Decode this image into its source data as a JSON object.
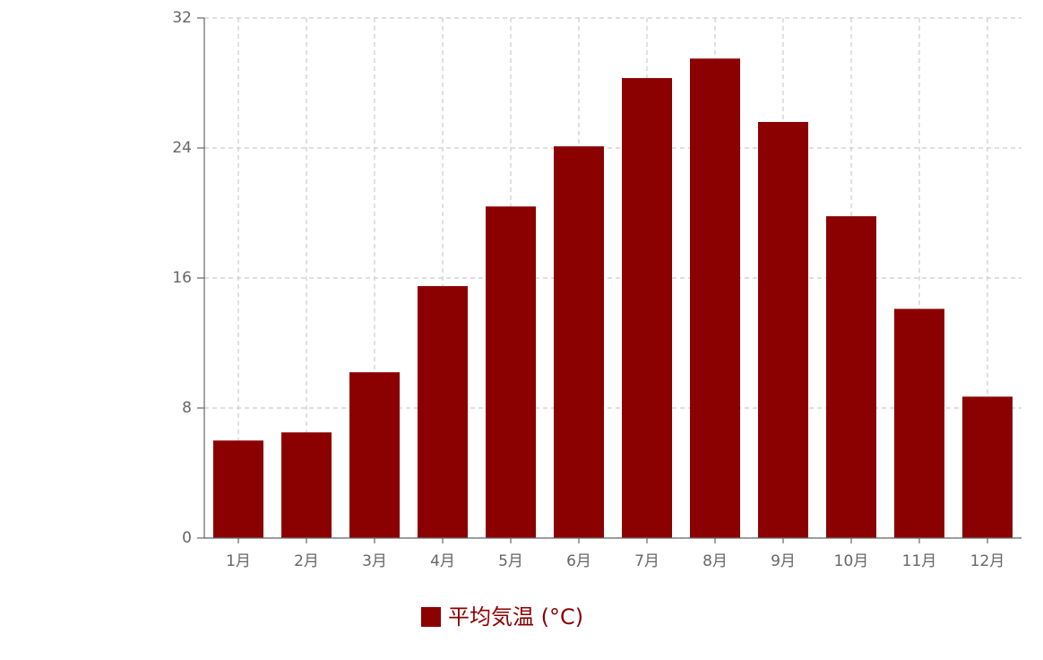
{
  "chart_data": {
    "type": "bar",
    "categories": [
      "1月",
      "2月",
      "3月",
      "4月",
      "5月",
      "6月",
      "7月",
      "8月",
      "9月",
      "10月",
      "11月",
      "12月"
    ],
    "series": [
      {
        "name": "平均気温 (°C)",
        "color": "#8b0000",
        "values": [
          6.0,
          6.5,
          10.2,
          15.5,
          20.4,
          24.1,
          28.3,
          29.5,
          25.6,
          19.8,
          14.1,
          8.7
        ]
      }
    ],
    "ylim": [
      0,
      32
    ],
    "yticks": [
      0,
      8,
      16,
      24,
      32
    ],
    "grid": true,
    "legend": "bottom"
  }
}
